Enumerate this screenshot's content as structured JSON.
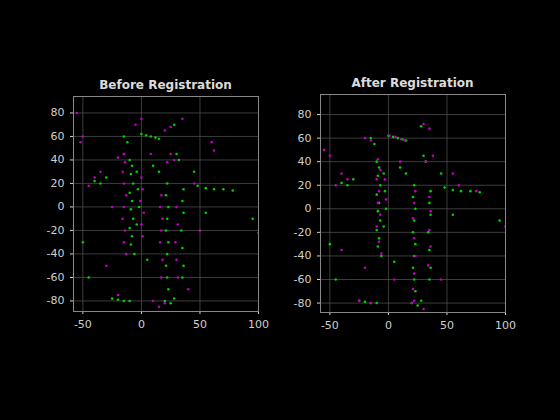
{
  "chart_data": [
    {
      "type": "scatter",
      "title": "Before Registration",
      "xlim": [
        -58,
        100
      ],
      "ylim": [
        -89,
        94
      ],
      "xticks": [
        -50,
        0,
        50,
        100
      ],
      "yticks": [
        -80,
        -60,
        -40,
        -20,
        0,
        20,
        40,
        60,
        80
      ],
      "grid": true,
      "marker": "dot",
      "series": [
        {
          "color": "#00d000",
          "x": [
            -10,
            -8,
            -9,
            -7,
            -10,
            -8,
            -9,
            -7,
            -10,
            -8,
            -9,
            -6,
            -4,
            -3,
            -2,
            -4,
            22,
            21,
            23,
            22,
            21,
            23,
            22,
            21,
            22,
            23,
            36,
            35,
            36,
            34,
            35,
            36,
            35,
            0,
            4,
            8,
            12,
            15,
            48,
            55,
            62,
            70,
            78,
            -25,
            -20,
            -15,
            -10,
            20,
            25,
            28,
            -30,
            -35,
            -40,
            -15,
            -12,
            30,
            32,
            28,
            45,
            55,
            -50,
            95,
            -45,
            10,
            5,
            15
          ],
          "values": [
            40,
            35,
            28,
            20,
            12,
            5,
            -2,
            -10,
            -18,
            -25,
            -32,
            -40,
            30,
            15,
            0,
            -15,
            20,
            10,
            0,
            -10,
            -20,
            -30,
            -40,
            -50,
            -60,
            -70,
            15,
            5,
            -5,
            -20,
            -35,
            -50,
            -60,
            62,
            61,
            60,
            59,
            58,
            18,
            16,
            15,
            15,
            14,
            -78,
            -79,
            -80,
            -80,
            -80,
            -82,
            -78,
            25,
            20,
            22,
            60,
            55,
            45,
            40,
            70,
            30,
            -5,
            -30,
            -10,
            -60,
            35,
            -45,
            30
          ]
        },
        {
          "color": "#c000c0",
          "x": [
            -15,
            -14,
            -16,
            -15,
            -13,
            -15,
            -16,
            -14,
            -15,
            -13,
            0,
            1,
            -1,
            2,
            0,
            1,
            17,
            16,
            18,
            17,
            16,
            18,
            17,
            30,
            31,
            29,
            30,
            31,
            25,
            28,
            22,
            -15,
            -20,
            0,
            -5,
            -40,
            -45,
            -35,
            60,
            62,
            20,
            25,
            -50,
            -52,
            10,
            15,
            20,
            -20,
            45,
            50,
            100,
            -55,
            35,
            40,
            -30,
            8,
            -25
          ],
          "values": [
            45,
            38,
            30,
            20,
            10,
            0,
            -10,
            -20,
            -30,
            -40,
            25,
            15,
            5,
            -5,
            -15,
            -25,
            10,
            0,
            -10,
            -20,
            -30,
            -45,
            -60,
            0,
            -15,
            -30,
            -45,
            -60,
            45,
            40,
            38,
            45,
            42,
            75,
            70,
            25,
            18,
            30,
            55,
            48,
            65,
            68,
            60,
            55,
            -80,
            -85,
            -82,
            -75,
            20,
            -20,
            -22,
            80,
            75,
            -70,
            -50,
            45,
            0
          ]
        }
      ]
    },
    {
      "type": "scatter",
      "title": "After Registration",
      "xlim": [
        -58,
        100
      ],
      "ylim": [
        -88,
        97
      ],
      "xticks": [
        -50,
        0,
        50,
        100
      ],
      "yticks": [
        -80,
        -60,
        -40,
        -20,
        0,
        20,
        40,
        60,
        80
      ],
      "grid": true,
      "marker": "dot",
      "series": [
        {
          "color": "#00d000",
          "x": [
            -10,
            -8,
            -9,
            -7,
            -10,
            -8,
            -9,
            -7,
            -10,
            -8,
            -9,
            -6,
            -4,
            -3,
            -2,
            -4,
            22,
            21,
            23,
            22,
            21,
            23,
            22,
            21,
            22,
            23,
            36,
            35,
            36,
            34,
            35,
            36,
            35,
            0,
            4,
            8,
            12,
            15,
            48,
            55,
            62,
            70,
            78,
            -25,
            -20,
            -15,
            -10,
            20,
            25,
            28,
            -30,
            -35,
            -40,
            -15,
            -12,
            30,
            32,
            28,
            45,
            55,
            -50,
            95,
            -45,
            10,
            5,
            15
          ],
          "values": [
            40,
            35,
            28,
            20,
            12,
            5,
            -2,
            -10,
            -18,
            -25,
            -32,
            -40,
            30,
            15,
            0,
            -15,
            20,
            10,
            0,
            -10,
            -20,
            -30,
            -40,
            -50,
            -60,
            -70,
            15,
            5,
            -5,
            -20,
            -35,
            -50,
            -60,
            62,
            61,
            60,
            59,
            58,
            18,
            16,
            15,
            15,
            14,
            -78,
            -79,
            -80,
            -80,
            -80,
            -82,
            -78,
            25,
            20,
            22,
            60,
            55,
            45,
            40,
            70,
            30,
            -5,
            -30,
            -10,
            -60,
            35,
            -45,
            30
          ]
        },
        {
          "color": "#c000c0",
          "x": [
            -9,
            -7,
            -10,
            -8,
            -9,
            -7,
            -10,
            -8,
            -6,
            -3,
            -2,
            23,
            22,
            21,
            22,
            23,
            22,
            21,
            22,
            35,
            36,
            35,
            36,
            34,
            1,
            6,
            11,
            14,
            30,
            35,
            38,
            32,
            -15,
            -20,
            -35,
            -40,
            -45,
            -50,
            -55,
            55,
            60,
            75,
            -25,
            -15,
            20,
            30,
            100,
            -40,
            45,
            10,
            -20,
            5
          ],
          "values": [
            42,
            33,
            25,
            15,
            5,
            -5,
            -15,
            -28,
            -38,
            25,
            8,
            15,
            5,
            -8,
            -25,
            -40,
            -55,
            -68,
            -78,
            10,
            -2,
            -18,
            -32,
            -48,
            62,
            61,
            59,
            58,
            72,
            68,
            45,
            40,
            58,
            60,
            25,
            30,
            20,
            45,
            50,
            30,
            20,
            15,
            -78,
            -80,
            -80,
            -85,
            -15,
            -35,
            -60,
            40,
            -50,
            -60
          ]
        }
      ]
    }
  ]
}
